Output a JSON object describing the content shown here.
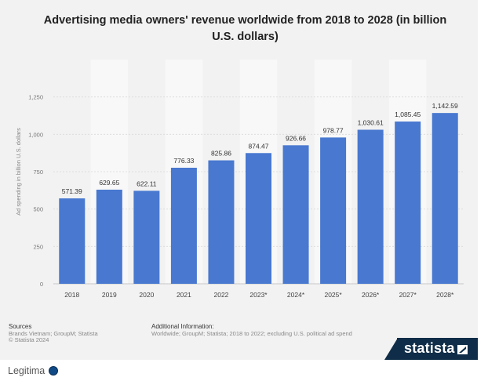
{
  "title": "Advertising media owners' revenue worldwide from 2018 to 2028 (in billion U.S. dollars)",
  "colors": {
    "bar": "#4878d0",
    "background": "#f2f2f2",
    "brand": "#0f2d48"
  },
  "chart_data": {
    "type": "bar",
    "title": "Advertising media owners' revenue worldwide from 2018 to 2028 (in billion U.S. dollars)",
    "xlabel": "",
    "ylabel": "Ad spending in billion U.S. dollars",
    "categories": [
      "2018",
      "2019",
      "2020",
      "2021",
      "2022",
      "2023*",
      "2024*",
      "2025*",
      "2026*",
      "2027*",
      "2028*"
    ],
    "values": [
      571.39,
      629.65,
      622.11,
      776.33,
      825.86,
      874.47,
      926.66,
      978.77,
      1030.61,
      1085.45,
      1142.59
    ],
    "value_labels": [
      "571.39",
      "629.65",
      "622.11",
      "776.33",
      "825.86",
      "874.47",
      "926.66",
      "978.77",
      "1,030.61",
      "1,085.45",
      "1,142.59"
    ],
    "ylim": [
      0,
      1500
    ],
    "yticks": [
      0,
      250,
      500,
      750,
      1000,
      1250
    ],
    "ytick_labels": [
      "0",
      "250",
      "500",
      "750",
      "1,000",
      "1,250"
    ],
    "grid": true,
    "legend": "none"
  },
  "footer": {
    "sources_heading": "Sources",
    "sources_line1": "Brands Vietnam; GroupM; Statista",
    "sources_line2": "© Statista 2024",
    "info_heading": "Additional Information:",
    "info_line1": "Worldwide; GroupM; Statista; 2018 to 2022; excluding U.S. political ad spend"
  },
  "brand": {
    "name": "statista",
    "mark_icon": "statista-logo-icon"
  },
  "overlay": {
    "label": "Legitima",
    "icon": "status-dot-icon"
  }
}
